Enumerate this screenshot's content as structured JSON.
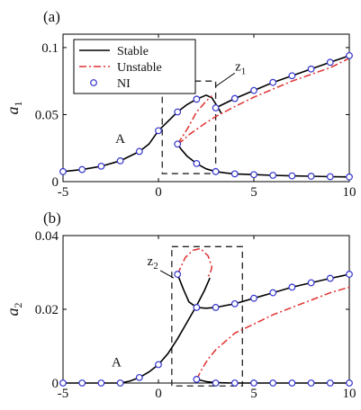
{
  "chart_data": [
    {
      "type": "line",
      "panel_label": "(a)",
      "ylabel": "a",
      "ylabel_sub": "1",
      "xlim": [
        -5,
        10
      ],
      "ylim": [
        0,
        0.11
      ],
      "xticks": [
        -5,
        0,
        5,
        10
      ],
      "xtick_labels": [
        "-5",
        "0",
        "5",
        "10"
      ],
      "yticks": [
        0,
        0.05,
        0.1
      ],
      "ytick_labels": [
        "0",
        "0.05",
        "0.1"
      ],
      "legend": {
        "position": "top-left",
        "entries": [
          {
            "label": "Stable",
            "style": "solid",
            "color": "#000000"
          },
          {
            "label": "Unstable",
            "style": "dash-dot",
            "color": "#e03030"
          },
          {
            "label": "NI",
            "style": "marker",
            "color": "#3333cc"
          }
        ]
      },
      "annotations": [
        {
          "text": "A",
          "x": -2.0,
          "y": 0.029
        },
        {
          "text": "z",
          "sub": "1",
          "x": 4.3,
          "y": 0.083
        }
      ],
      "zoom_box": {
        "x": [
          0.2,
          3.0
        ],
        "y": [
          0.006,
          0.075
        ]
      },
      "series": [
        {
          "style": "stable",
          "x": [
            -5,
            -4,
            -3,
            -2,
            -1,
            -0.5,
            0,
            0.5,
            1,
            1.5,
            2,
            2.5,
            2.8,
            3.0,
            3.3
          ],
          "y": [
            0.0075,
            0.009,
            0.0115,
            0.0155,
            0.0225,
            0.028,
            0.038,
            0.045,
            0.052,
            0.0575,
            0.0615,
            0.0645,
            0.0625,
            0.058,
            0.0508
          ]
        },
        {
          "style": "stable",
          "x": [
            3.0,
            4,
            5,
            6,
            7,
            8,
            9,
            10
          ],
          "y": [
            0.055,
            0.062,
            0.068,
            0.074,
            0.079,
            0.084,
            0.089,
            0.094
          ]
        },
        {
          "style": "stable",
          "x": [
            1.0,
            1.2,
            1.5,
            2.0,
            2.5,
            3.0,
            3.5,
            4,
            5,
            6,
            7,
            8,
            9,
            10
          ],
          "y": [
            0.028,
            0.024,
            0.019,
            0.0135,
            0.0095,
            0.0075,
            0.0065,
            0.0058,
            0.0052,
            0.0047,
            0.0043,
            0.004,
            0.0037,
            0.0035
          ]
        },
        {
          "style": "unstable",
          "x": [
            1.0,
            1.5,
            2.0,
            2.5,
            2.8
          ],
          "y": [
            0.028,
            0.039,
            0.052,
            0.06,
            0.064
          ]
        },
        {
          "style": "unstable",
          "x": [
            1.0,
            1.3,
            1.6,
            2.0,
            2.5,
            3.0,
            4,
            5,
            6,
            7,
            8,
            9,
            10
          ],
          "y": [
            0.028,
            0.031,
            0.035,
            0.039,
            0.044,
            0.0485,
            0.056,
            0.063,
            0.069,
            0.075,
            0.08,
            0.085,
            0.092
          ]
        }
      ],
      "markers": {
        "x": [
          -5,
          -4,
          -3,
          -2,
          -1,
          0,
          1,
          1,
          2,
          3,
          4,
          5,
          6,
          7,
          8,
          9,
          10,
          2,
          3,
          4,
          5,
          6,
          7,
          8,
          9,
          10
        ],
        "y": [
          0.0075,
          0.009,
          0.0115,
          0.0155,
          0.0225,
          0.038,
          0.052,
          0.028,
          0.0615,
          0.055,
          0.062,
          0.068,
          0.074,
          0.079,
          0.084,
          0.089,
          0.094,
          0.0135,
          0.0075,
          0.0058,
          0.0052,
          0.0047,
          0.0043,
          0.004,
          0.0037,
          0.0035
        ]
      }
    },
    {
      "type": "line",
      "panel_label": "(b)",
      "ylabel": "a",
      "ylabel_sub": "2",
      "xlim": [
        -5,
        10
      ],
      "ylim": [
        0,
        0.04
      ],
      "xticks": [
        -5,
        0,
        5,
        10
      ],
      "xtick_labels": [
        "-5",
        "0",
        "5",
        "10"
      ],
      "yticks": [
        0,
        0.02,
        0.04
      ],
      "ytick_labels": [
        "0",
        "0.02",
        "0.04"
      ],
      "annotations": [
        {
          "text": "A",
          "x": -2.2,
          "y": 0.0045
        },
        {
          "text": "z",
          "sub": "2",
          "x": -0.3,
          "y": 0.032
        }
      ],
      "zoom_box": {
        "x": [
          0.7,
          4.4
        ],
        "y": [
          -0.0008,
          0.037
        ]
      },
      "series": [
        {
          "style": "stable",
          "x": [
            -5,
            -2,
            -1.5,
            -1,
            -0.5,
            0,
            0.5,
            1,
            1.5,
            2,
            2.4,
            2.7
          ],
          "y": [
            0,
            0,
            0.0005,
            0.0015,
            0.003,
            0.005,
            0.008,
            0.012,
            0.0165,
            0.021,
            0.025,
            0.0285
          ]
        },
        {
          "style": "stable",
          "x": [
            1.0,
            1.3,
            1.6,
            2.0,
            2.5,
            3,
            4,
            5,
            6,
            7,
            8,
            9,
            10
          ],
          "y": [
            0.0295,
            0.0255,
            0.022,
            0.0205,
            0.0203,
            0.0205,
            0.0215,
            0.023,
            0.0245,
            0.026,
            0.0272,
            0.0284,
            0.0295
          ]
        },
        {
          "style": "stable",
          "x": [
            2.0,
            2.5,
            3,
            4,
            6,
            8,
            10
          ],
          "y": [
            0.001,
            0.0004,
            0.0001,
            0,
            0,
            0,
            0
          ]
        },
        {
          "style": "unstable",
          "x": [
            1.0,
            1.4,
            1.8,
            2.2,
            2.6,
            2.8,
            2.7,
            2.5
          ],
          "y": [
            0.0295,
            0.034,
            0.036,
            0.0365,
            0.0345,
            0.0315,
            0.0295,
            0.0285
          ]
        },
        {
          "style": "unstable",
          "x": [
            2.0,
            2.3,
            2.6,
            3,
            4,
            5,
            6,
            7,
            8,
            9,
            10
          ],
          "y": [
            0.001,
            0.004,
            0.0065,
            0.009,
            0.0135,
            0.016,
            0.0185,
            0.0205,
            0.0225,
            0.0245,
            0.026
          ]
        }
      ],
      "markers": {
        "x": [
          -5,
          -4,
          -3,
          -2,
          -1,
          0,
          1,
          2,
          3,
          4,
          5,
          6,
          7,
          8,
          9,
          10,
          2,
          3,
          4,
          5,
          6,
          7,
          8,
          9,
          10
        ],
        "y": [
          0,
          0,
          0,
          0,
          0.0015,
          0.005,
          0.0295,
          0.0205,
          0.0205,
          0.0215,
          0.023,
          0.0245,
          0.026,
          0.0272,
          0.0284,
          0.0295,
          0.001,
          0,
          0,
          0,
          0,
          0,
          0,
          0,
          0
        ]
      }
    }
  ]
}
